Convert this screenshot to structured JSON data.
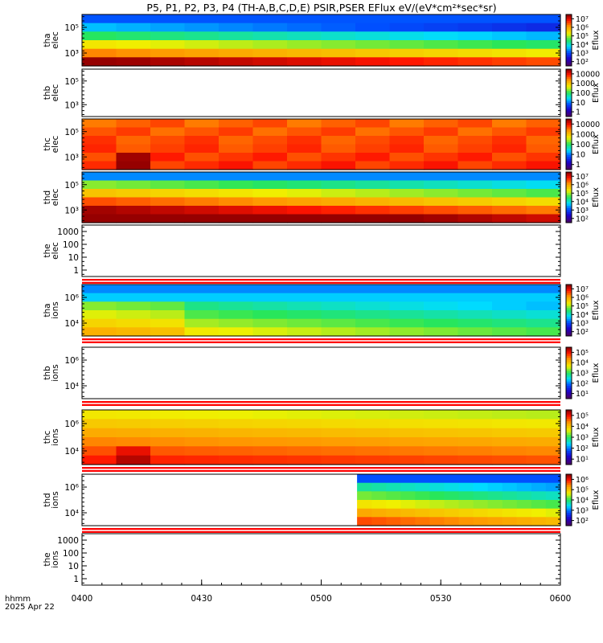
{
  "title": "P5, P1, P2, P3, P4 (TH-A,B,C,D,E) PSIR,PSER EFlux eV/(eV*cm²*sec*sr)",
  "chart_data": {
    "type": "heatmap",
    "x_axis": {
      "range": [
        "0400",
        "0600"
      ],
      "tick_labels": [
        "0400",
        "0430",
        "0500",
        "0530",
        "0600"
      ],
      "label_line1": "hhmm",
      "label_line2": "2025 Apr 22"
    },
    "colorbar_label": "Eflux",
    "panels": [
      {
        "id": "tha-elec",
        "ylabel": [
          "tha",
          "elec"
        ],
        "data": true,
        "ylog": true,
        "yticks": [
          "10⁵",
          "10³"
        ],
        "cbar": [
          "10⁷",
          "10⁶",
          "10⁵",
          "10⁴",
          "10³",
          "10²"
        ],
        "profile": "elec_a",
        "sep": false
      },
      {
        "id": "thb-elec",
        "ylabel": [
          "thb",
          "elec"
        ],
        "data": false,
        "ylog": true,
        "yticks": [
          "10⁵",
          "10³"
        ],
        "cbar": [
          "10000",
          "1000",
          "100",
          "10",
          "1"
        ],
        "profile": null,
        "sep": false
      },
      {
        "id": "thc-elec",
        "ylabel": [
          "thc",
          "elec"
        ],
        "data": true,
        "ylog": true,
        "yticks": [
          "10⁵",
          "10³"
        ],
        "cbar": [
          "10000",
          "1000",
          "100",
          "10",
          "1"
        ],
        "profile": "elec_c",
        "sep": false
      },
      {
        "id": "thd-elec",
        "ylabel": [
          "thd",
          "elec"
        ],
        "data": true,
        "ylog": true,
        "yticks": [
          "10⁵",
          "10³"
        ],
        "cbar": [
          "10⁷",
          "10⁶",
          "10⁵",
          "10⁴",
          "10³",
          "10²"
        ],
        "profile": "elec_d",
        "sep": false
      },
      {
        "id": "the-elec",
        "ylabel": [
          "the",
          "elec"
        ],
        "data": false,
        "ylog": true,
        "yticks": [
          "1000",
          "100",
          "10",
          "1"
        ],
        "cbar": null,
        "profile": null,
        "sep": true
      },
      {
        "id": "tha-ions",
        "ylabel": [
          "tha",
          "ions"
        ],
        "data": true,
        "ylog": true,
        "yticks": [
          "10⁶",
          "10⁴"
        ],
        "cbar": [
          "10⁷",
          "10⁶",
          "10⁵",
          "10⁴",
          "10³",
          "10²"
        ],
        "profile": "ions_a",
        "sep": true
      },
      {
        "id": "thb-ions",
        "ylabel": [
          "thb",
          "ions"
        ],
        "data": false,
        "ylog": true,
        "yticks": [
          "10⁶",
          "10⁴"
        ],
        "cbar": [
          "10⁵",
          "10⁴",
          "10³",
          "10²",
          "10¹"
        ],
        "profile": null,
        "sep": true
      },
      {
        "id": "thc-ions",
        "ylabel": [
          "thc",
          "ions"
        ],
        "data": true,
        "ylog": true,
        "yticks": [
          "10⁶",
          "10⁴"
        ],
        "cbar": [
          "10⁵",
          "10⁴",
          "10³",
          "10²",
          "10¹"
        ],
        "profile": "ions_c",
        "sep": true
      },
      {
        "id": "thd-ions",
        "ylabel": [
          "thd",
          "ions"
        ],
        "data": true,
        "ylog": true,
        "yticks": [
          "10⁶",
          "10⁴"
        ],
        "cbar": [
          "10⁶",
          "10⁵",
          "10⁴",
          "10³",
          "10²"
        ],
        "profile": "ions_d",
        "sep": true,
        "data_start": "0508"
      },
      {
        "id": "the-ions",
        "ylabel": [
          "the",
          "ions"
        ],
        "data": false,
        "ylog": true,
        "yticks": [
          "1000",
          "100",
          "10",
          "1"
        ],
        "cbar": null,
        "profile": null,
        "sep": false
      }
    ]
  }
}
